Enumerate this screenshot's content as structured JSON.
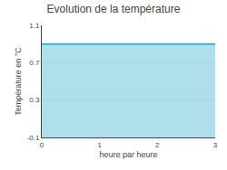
{
  "chart_data": {
    "type": "area",
    "title": "Evolution de la température",
    "xlabel": "heure par heure",
    "ylabel": "Température en °C",
    "x": [
      0,
      3
    ],
    "values": [
      0.9,
      0.9
    ],
    "color": "#3ab0d0",
    "xlim": [
      0,
      3
    ],
    "ylim": [
      -0.1,
      1.1
    ],
    "xticks": [
      0,
      1,
      2,
      3
    ],
    "yticks": [
      -0.1,
      0.3,
      0.7,
      1.1
    ],
    "grid": "y"
  }
}
